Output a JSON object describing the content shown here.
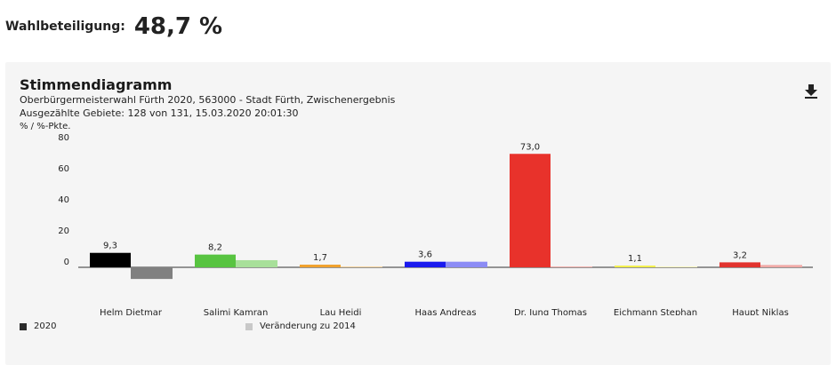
{
  "turnout": {
    "label": "Wahlbeteiligung:",
    "value": "48,7 %"
  },
  "panel": {
    "title": "Stimmendiagramm",
    "subtitle_line1": "Oberbürgermeisterwahl Fürth 2020, 563000 - Stadt Fürth, Zwischenergebnis",
    "subtitle_line2": "Ausgezählte Gebiete: 128 von 131, 15.03.2020 20:01:30",
    "download_icon": "download-icon"
  },
  "legend": {
    "current": {
      "label": "2020",
      "color": "#2b2b2b"
    },
    "change": {
      "label": "Veränderung zu 2014",
      "color": "#c8c8c8"
    }
  },
  "chart_data": {
    "type": "bar",
    "unit_label": "% / %-Pkte.",
    "ylim": [
      0,
      80
    ],
    "yticks": [
      0,
      20,
      40,
      60,
      80
    ],
    "grid": false,
    "legend_position": "bottom-left",
    "categories": [
      "Helm Dietmar",
      "Salimi Kamran",
      "Lau Heidi",
      "Haas Andreas",
      "Dr. Jung Thomas",
      "Eichmann Stephan",
      "Haupt Niklas"
    ],
    "series": [
      {
        "name": "2020",
        "values": [
          9.3,
          8.2,
          1.7,
          3.6,
          73.0,
          1.1,
          3.2
        ],
        "labels": [
          "9,3",
          "8,2",
          "1,7",
          "3,6",
          "73,0",
          "1,1",
          "3,2"
        ],
        "colors": [
          "#000000",
          "#58c441",
          "#f0a12d",
          "#1a1aee",
          "#e8322b",
          "#f3f04a",
          "#e2332e"
        ]
      },
      {
        "name": "Veränderung zu 2014",
        "values": [
          -7.5,
          4.6,
          0.5,
          3.6,
          0.5,
          0.5,
          1.5
        ],
        "colors": [
          "#808080",
          "#a8e09a",
          "#f6cf93",
          "#8c8cf5",
          "#f2a8a3",
          "#f9f6b8",
          "#f0a9a6"
        ]
      }
    ]
  }
}
